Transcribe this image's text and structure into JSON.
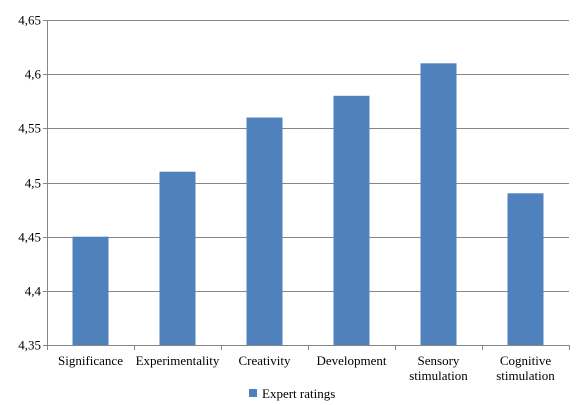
{
  "chart_data": {
    "type": "bar",
    "categories": [
      [
        "Significance"
      ],
      [
        "Experimentality"
      ],
      [
        "Creativity"
      ],
      [
        "Development"
      ],
      [
        "Sensory",
        "stimulation"
      ],
      [
        "Cognitive",
        "stimulation"
      ]
    ],
    "series": [
      {
        "name": "Expert ratings",
        "values": [
          4.45,
          4.51,
          4.56,
          4.58,
          4.61,
          4.49
        ]
      }
    ],
    "ylim": [
      4.35,
      4.65
    ],
    "yticks": [
      4.35,
      4.4,
      4.45,
      4.5,
      4.55,
      4.6,
      4.65
    ],
    "ytick_labels": [
      "4,35",
      "4,4",
      "4,45",
      "4,5",
      "4,55",
      "4,6",
      "4,65"
    ],
    "grid": true,
    "legend_position": "bottom",
    "colors": {
      "bar": "#4f81bd",
      "grid": "#868686",
      "axis": "#868686"
    }
  }
}
